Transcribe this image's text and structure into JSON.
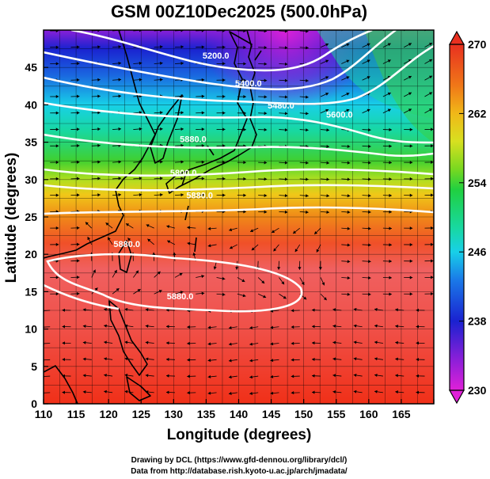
{
  "title": "GSM 00Z10Dec2025 (500.0hPa)",
  "xlabel": "Longitude (degrees)",
  "ylabel": "Latitude  (degrees)",
  "credits": [
    "Drawing by DCL (https://www.gfd-dennou.org/library/dcl/)",
    "Data from http://database.rish.kyoto-u.ac.jp/arch/jmadata/"
  ],
  "chart_data": {
    "type": "heatmap",
    "title": "GSM 00Z10Dec2025 (500.0hPa)",
    "xlabel": "Longitude (degrees)",
    "ylabel": "Latitude  (degrees)",
    "xlim": [
      110,
      170
    ],
    "ylim": [
      0,
      50
    ],
    "xticks": [
      110,
      115,
      120,
      125,
      130,
      135,
      140,
      145,
      150,
      155,
      160,
      165
    ],
    "yticks": [
      0,
      5,
      10,
      15,
      20,
      25,
      30,
      35,
      40,
      45
    ],
    "colorbar": {
      "min": 230,
      "max": 270,
      "ticks": [
        230,
        238,
        246,
        254,
        262,
        270
      ],
      "colors": [
        "#e020d8",
        "#8a1fd8",
        "#1a22d0",
        "#1a7ae8",
        "#18d0e8",
        "#18d8a0",
        "#20d040",
        "#7ad820",
        "#d8e020",
        "#f0b818",
        "#f07818",
        "#f03818",
        "#e02828"
      ]
    },
    "contour_labels": [
      {
        "text": "5200.0",
        "lon": 136.5,
        "lat": 46.2
      },
      {
        "text": "5400.0",
        "lon": 141.5,
        "lat": 42.5
      },
      {
        "text": "5480.0",
        "lon": 146.5,
        "lat": 39.5
      },
      {
        "text": "5600.0",
        "lon": 155.5,
        "lat": 38.3
      },
      {
        "text": "5880.0",
        "lon": 133.0,
        "lat": 35.0
      },
      {
        "text": "5800.0",
        "lon": 131.5,
        "lat": 30.5
      },
      {
        "text": "5880.0",
        "lon": 134.0,
        "lat": 27.5
      },
      {
        "text": "5880.0",
        "lon": 122.8,
        "lat": 21.0
      },
      {
        "text": "5880.0",
        "lon": 131.0,
        "lat": 14.0
      }
    ],
    "background": "air temperature (K) with geopotential height contours and wind streamlines"
  },
  "colors": {
    "contour": "#ffffff",
    "coast": "#000000",
    "streamline": "#000000"
  }
}
